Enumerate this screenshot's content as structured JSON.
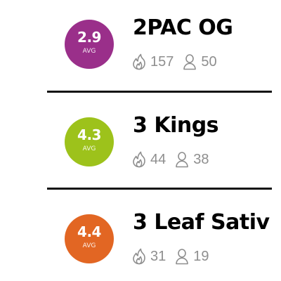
{
  "strains": [
    {
      "name": "2PAC OG",
      "rating": "2.9",
      "rating_label": "AVG",
      "badge_color": "#9a2f8a",
      "flame_icon": "flame-icon",
      "user_icon": "user-icon",
      "flame_count": "157",
      "user_count": "50"
    },
    {
      "name": "3 Kings",
      "rating": "4.3",
      "rating_label": "AVG",
      "badge_color": "#9dc21b",
      "flame_icon": "flame-icon",
      "user_icon": "user-icon",
      "flame_count": "44",
      "user_count": "38"
    },
    {
      "name": "3 Leaf Sativ",
      "rating": "4.4",
      "rating_label": "AVG",
      "badge_color": "#e26623",
      "flame_icon": "flame-icon",
      "user_icon": "user-icon",
      "flame_count": "31",
      "user_count": "19"
    }
  ],
  "colors": {
    "text": "#000000",
    "muted": "#8e8e8e",
    "divider": "#111111",
    "background": "#ffffff"
  }
}
